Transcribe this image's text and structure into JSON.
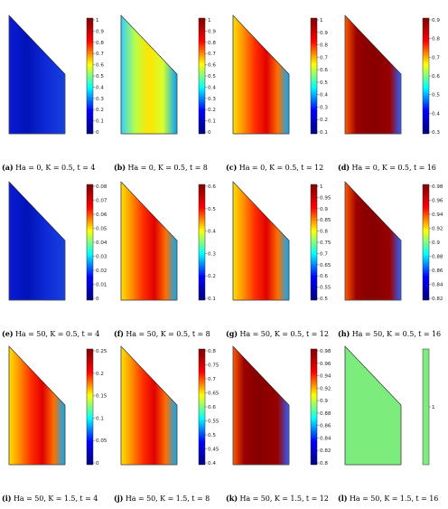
{
  "panels": [
    {
      "label": "(a)",
      "caption": "Ha = 0, K = 0.5, t = 4",
      "ticks": [
        "1",
        "0.9",
        "0.8",
        "0.7",
        "0.6",
        "0.5",
        "0.4",
        "0.3",
        "0.2",
        "0.1",
        "0"
      ],
      "fill": "deep-blue"
    },
    {
      "label": "(b)",
      "caption": "Ha = 0, K = 0.5, t = 8",
      "ticks": [
        "1",
        "0.9",
        "0.8",
        "0.7",
        "0.6",
        "0.5",
        "0.4",
        "0.3",
        "0.2",
        "0.1",
        "0"
      ],
      "fill": "yellow-gradient"
    },
    {
      "label": "(c)",
      "caption": "Ha = 0, K = 0.5, t = 12",
      "ticks": [
        "1",
        "0.9",
        "0.8",
        "0.7",
        "0.6",
        "0.5",
        "0.4",
        "0.3",
        "0.2",
        "0.1"
      ],
      "fill": "red-hot"
    },
    {
      "label": "(d)",
      "caption": "Ha = 0, K = 0.5, t = 16",
      "ticks": [
        "0.9",
        "0.8",
        "0.7",
        "0.6",
        "0.5",
        "0.4",
        "0.3"
      ],
      "fill": "dark-red"
    },
    {
      "label": "(e)",
      "caption": "Ha = 50, K = 0.5, t = 4",
      "ticks": [
        "0.08",
        "0.07",
        "0.06",
        "0.05",
        "0.04",
        "0.03",
        "0.02",
        "0.01",
        "0"
      ],
      "fill": "deep-blue"
    },
    {
      "label": "(f)",
      "caption": "Ha = 50, K = 0.5, t = 8",
      "ticks": [
        "0.6",
        "0.5",
        "0.4",
        "0.3",
        "0.2",
        "0.1"
      ],
      "fill": "red-hot"
    },
    {
      "label": "(g)",
      "caption": "Ha = 50, K = 0.5, t = 12",
      "ticks": [
        "1",
        "0.95",
        "0.9",
        "0.85",
        "0.8",
        "0.75",
        "0.7",
        "0.65",
        "0.6",
        "0.55",
        "0.5"
      ],
      "fill": "red-hot"
    },
    {
      "label": "(h)",
      "caption": "Ha = 50, K = 0.5, t = 16",
      "ticks": [
        "0.98",
        "0.96",
        "0.94",
        "0.92",
        "0.9",
        "0.88",
        "0.86",
        "0.84",
        "0.82"
      ],
      "fill": "dark-red"
    },
    {
      "label": "(i)",
      "caption": "Ha = 50, K = 1.5, t = 4",
      "ticks": [
        "0.25",
        "0.2",
        "0.15",
        "0.1",
        "0.05",
        "0"
      ],
      "fill": "red-hot"
    },
    {
      "label": "(j)",
      "caption": "Ha = 50, K = 1.5, t = 8",
      "ticks": [
        "0.8",
        "0.75",
        "0.7",
        "0.65",
        "0.6",
        "0.55",
        "0.5",
        "0.45",
        "0.4"
      ],
      "fill": "red-hot"
    },
    {
      "label": "(k)",
      "caption": "Ha = 50, K = 1.5, t = 12",
      "ticks": [
        "0.98",
        "0.96",
        "0.94",
        "0.92",
        "0.9",
        "0.88",
        "0.86",
        "0.84",
        "0.82",
        "0.8"
      ],
      "fill": "dark-red"
    },
    {
      "label": "(l)",
      "caption": "Ha = 50, K = 1.5, t = 16",
      "ticks": [
        "1"
      ],
      "fill": "uniform-green"
    }
  ],
  "colors": {
    "jet_stops": [
      "#00007f",
      "#0000ff",
      "#00ffff",
      "#ffff00",
      "#ff0000",
      "#7f0000"
    ],
    "uniform": "#7cec7c"
  }
}
